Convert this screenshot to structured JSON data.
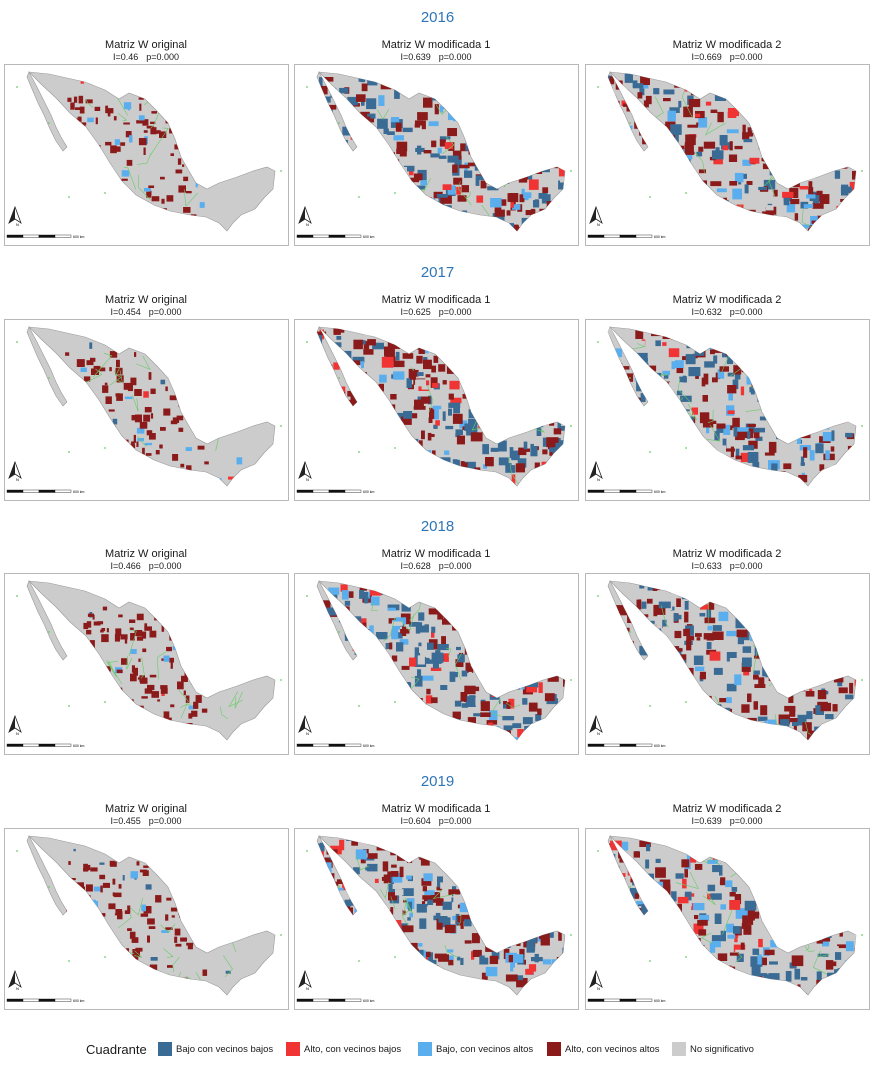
{
  "years": [
    {
      "label": "2016",
      "panels": [
        {
          "title": "Matriz W original",
          "i": "I=0.46",
          "p": "p=0.000"
        },
        {
          "title": "Matriz W modificada 1",
          "i": "I=0.639",
          "p": "p=0.000"
        },
        {
          "title": "Matriz W modificada 2",
          "i": "I=0.669",
          "p": "p=0.000"
        }
      ]
    },
    {
      "label": "2017",
      "panels": [
        {
          "title": "Matriz W original",
          "i": "I=0.454",
          "p": "p=0.000"
        },
        {
          "title": "Matriz W modificada 1",
          "i": "I=0.625",
          "p": "p=0.000"
        },
        {
          "title": "Matriz W modificada 2",
          "i": "I=0.632",
          "p": "p=0.000"
        }
      ]
    },
    {
      "label": "2018",
      "panels": [
        {
          "title": "Matriz W original",
          "i": "I=0.466",
          "p": "p=0.000"
        },
        {
          "title": "Matriz W modificada 1",
          "i": "I=0.628",
          "p": "p=0.000"
        },
        {
          "title": "Matriz W modificada 2",
          "i": "I=0.633",
          "p": "p=0.000"
        }
      ]
    },
    {
      "label": "2019",
      "panels": [
        {
          "title": "Matriz W original",
          "i": "I=0.455",
          "p": "p=0.000"
        },
        {
          "title": "Matriz W modificada 1",
          "i": "I=0.604",
          "p": "p=0.000"
        },
        {
          "title": "Matriz W modificada 2",
          "i": "I=0.639",
          "p": "p=0.000"
        }
      ]
    }
  ],
  "map": {
    "north_label": "N",
    "scale_label": "600 km"
  },
  "legend": {
    "title": "Cuadrante",
    "items": [
      {
        "label": "Bajo con vecinos bajos",
        "color": "#3a6b95"
      },
      {
        "label": "Alto, con vecinos bajos",
        "color": "#f03434"
      },
      {
        "label": "Bajo, con vecinos altos",
        "color": "#5aaeee"
      },
      {
        "label": "Alto, con vecinos altos",
        "color": "#8b1a1a"
      },
      {
        "label": "No significativo",
        "color": "#cccccc"
      }
    ]
  },
  "colors": {
    "year": "#2e75b6",
    "border": "#66cc66"
  }
}
